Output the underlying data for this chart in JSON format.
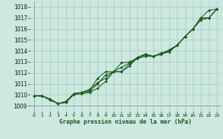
{
  "title": "Graphe pression niveau de la mer (hPa)",
  "background_color": "#cce8e0",
  "grid_color": "#aaccc4",
  "line_color": "#1a5c1a",
  "xlim": [
    -0.5,
    23.5
  ],
  "ylim": [
    1008.5,
    1018.5
  ],
  "xticks": [
    0,
    1,
    2,
    3,
    4,
    5,
    6,
    7,
    8,
    9,
    10,
    11,
    12,
    13,
    14,
    15,
    16,
    17,
    18,
    19,
    20,
    21,
    22,
    23
  ],
  "yticks": [
    1009,
    1010,
    1011,
    1012,
    1013,
    1014,
    1015,
    1016,
    1017,
    1018
  ],
  "series": [
    [
      1009.9,
      1009.9,
      1009.5,
      1009.2,
      1009.3,
      1010.0,
      1010.1,
      1010.2,
      1010.6,
      1011.2,
      1012.1,
      1012.1,
      1012.6,
      1013.4,
      1013.7,
      1013.5,
      1013.8,
      1014.0,
      1014.5,
      1015.3,
      1016.0,
      1016.8,
      1017.0,
      1017.8
    ],
    [
      1009.9,
      1009.9,
      1009.6,
      1009.2,
      1009.3,
      1010.1,
      1010.2,
      1010.3,
      1011.0,
      1011.8,
      1012.1,
      1012.5,
      1012.9,
      1013.4,
      1013.6,
      1013.5,
      1013.7,
      1014.0,
      1014.5,
      1015.3,
      1016.0,
      1017.0,
      1017.0,
      1017.8
    ],
    [
      1009.9,
      1009.9,
      1009.6,
      1009.2,
      1009.4,
      1010.1,
      1010.2,
      1010.4,
      1011.5,
      1012.1,
      1012.1,
      1012.1,
      1012.8,
      1013.3,
      1013.5,
      1013.5,
      1013.7,
      1013.9,
      1014.5,
      1015.3,
      1016.0,
      1017.0,
      1017.0,
      1017.8
    ],
    [
      1009.9,
      1009.9,
      1009.6,
      1009.2,
      1009.3,
      1010.1,
      1010.2,
      1010.5,
      1011.1,
      1011.5,
      1012.1,
      1012.9,
      1013.0,
      1013.3,
      1013.7,
      1013.5,
      1013.7,
      1014.1,
      1014.5,
      1015.3,
      1016.0,
      1017.0,
      1017.7,
      1017.8
    ]
  ]
}
